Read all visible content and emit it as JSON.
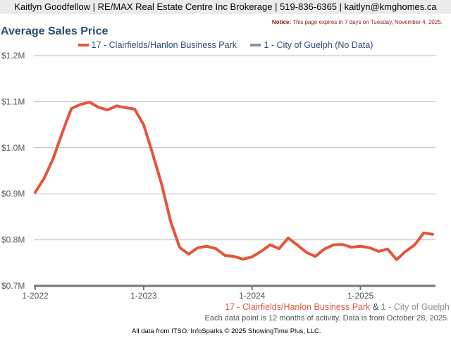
{
  "header": {
    "text": "Kaitlyn Goodfellow | RE/MAX Real Estate Centre Inc Brokerage | 519-836-6365 | kaitlyn@kmghomes.ca"
  },
  "notice": {
    "label": "Notice:",
    "text": " This page expires in 7 days on Tuesday, November 4, 2025."
  },
  "colors": {
    "series1": "#e4553a",
    "series2": "#8e9494",
    "title": "#2a4d74"
  },
  "chart_data": {
    "type": "line",
    "title": "Average Sales Price",
    "legend": [
      "17 - Clairfields/Hanlon Business Park",
      "1 - City of Guelph (No Data)"
    ],
    "legend_placement": "top-center",
    "yticks": [
      "$1.2M",
      "$1.1M",
      "$1.0M",
      "$0.9M",
      "$0.8M",
      "$0.7M"
    ],
    "ytick_values": [
      1.2,
      1.1,
      1.0,
      0.9,
      0.8,
      0.7
    ],
    "ylim": [
      0.7,
      1.2
    ],
    "xticks": [
      "1-2022",
      "1-2023",
      "1-2024",
      "1-2025"
    ],
    "xtick_index": [
      0,
      12,
      24,
      36
    ],
    "x_count": 45,
    "grid": true,
    "series": [
      {
        "name": "17 - Clairfields/Hanlon Business Park",
        "values": [
          0.903,
          0.934,
          0.977,
          1.033,
          1.085,
          1.094,
          1.099,
          1.088,
          1.082,
          1.091,
          1.087,
          1.084,
          1.05,
          0.987,
          0.92,
          0.839,
          0.783,
          0.769,
          0.783,
          0.786,
          0.781,
          0.766,
          0.764,
          0.758,
          0.763,
          0.775,
          0.789,
          0.781,
          0.804,
          0.789,
          0.773,
          0.764,
          0.78,
          0.789,
          0.79,
          0.784,
          0.786,
          0.783,
          0.775,
          0.78,
          0.757,
          0.775,
          0.789,
          0.815,
          0.812
        ]
      }
    ]
  },
  "footer": {
    "area1": "17 - Clairfields/Hanlon Business Park",
    "amp": " & ",
    "area2": "1 - City of Guelph",
    "note": "Each data point is 12 months of activity. Data is from October 28, 2025.",
    "credit": "All data from ITSO. InfoSparks © 2025 ShowingTime Plus, LLC."
  }
}
